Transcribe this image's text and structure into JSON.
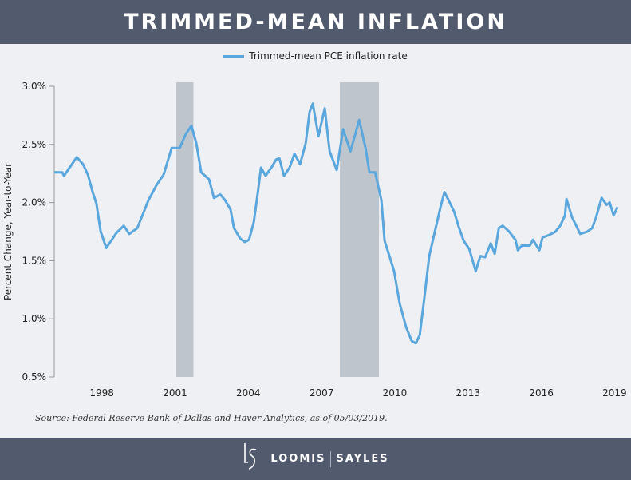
{
  "header": {
    "title": "TRIMMED-MEAN INFLATION"
  },
  "footer": {
    "logo_mark": "LS",
    "brand_left": "LOOMIS",
    "brand_right": "SAYLES"
  },
  "source_note": "Source: Federal Reserve Bank of Dallas and Haver Analytics, as of 05/03/2019.",
  "colors": {
    "line": "#5aa7dd",
    "recession": "#bfc5cc",
    "header": "#525a6e",
    "background": "#eef0f4"
  },
  "chart_data": {
    "type": "line",
    "title": "TRIMMED-MEAN INFLATION",
    "xlabel": "",
    "ylabel": "Percent Change, Year-to-Year",
    "xlim": [
      1996.2,
      2019.3
    ],
    "ylim": [
      0.5,
      3.0
    ],
    "yticks": [
      "3.0%",
      "2.5%",
      "2.0%",
      "1.5%",
      "1.0%",
      "0.5%"
    ],
    "ytick_values": [
      3.0,
      2.5,
      2.0,
      1.5,
      1.0,
      0.5
    ],
    "xticks": [
      "1998",
      "2001",
      "2004",
      "2007",
      "2010",
      "2013",
      "2016",
      "2019"
    ],
    "grid": false,
    "legend": "top-center",
    "recessions": [
      [
        2001.2,
        2001.9
      ],
      [
        2007.9,
        2009.5
      ]
    ],
    "series": [
      {
        "name": "Trimmed-mean PCE inflation rate",
        "x": [
          1996.2,
          1996.53,
          1996.6,
          1996.86,
          1997.12,
          1997.38,
          1997.58,
          1997.77,
          1997.93,
          1998.1,
          1998.33,
          1998.56,
          1998.75,
          1999.05,
          1999.27,
          1999.6,
          2000.06,
          2000.39,
          2000.68,
          2001.01,
          2001.34,
          2001.59,
          2001.82,
          2002.02,
          2002.22,
          2002.54,
          2002.74,
          2003.0,
          2003.2,
          2003.42,
          2003.56,
          2003.82,
          2004.01,
          2004.18,
          2004.37,
          2004.54,
          2004.67,
          2004.86,
          2005.12,
          2005.29,
          2005.42,
          2005.61,
          2005.84,
          2006.04,
          2006.27,
          2006.5,
          2006.66,
          2006.79,
          2007.02,
          2007.28,
          2007.48,
          2007.77,
          2008.03,
          2008.33,
          2008.69,
          2008.95,
          2009.11,
          2009.34,
          2009.6,
          2009.73,
          2009.93,
          2010.12,
          2010.35,
          2010.61,
          2010.84,
          2011.01,
          2011.17,
          2011.37,
          2011.56,
          2011.79,
          2012.02,
          2012.18,
          2012.35,
          2012.58,
          2012.77,
          2012.97,
          2013.2,
          2013.46,
          2013.65,
          2013.85,
          2014.08,
          2014.24,
          2014.41,
          2014.57,
          2014.83,
          2015.09,
          2015.19,
          2015.35,
          2015.68,
          2015.81,
          2016.07,
          2016.2,
          2016.46,
          2016.73,
          2016.92,
          2017.12,
          2017.18,
          2017.41,
          2017.58,
          2017.74,
          2018.03,
          2018.23,
          2018.39,
          2018.62,
          2018.82,
          2018.95,
          2019.11,
          2019.27
        ],
        "values": [
          2.26,
          2.26,
          2.23,
          2.31,
          2.39,
          2.33,
          2.24,
          2.09,
          1.99,
          1.75,
          1.61,
          1.68,
          1.74,
          1.8,
          1.73,
          1.78,
          2.02,
          2.15,
          2.24,
          2.47,
          2.47,
          2.59,
          2.66,
          2.51,
          2.26,
          2.2,
          2.04,
          2.07,
          2.02,
          1.94,
          1.78,
          1.69,
          1.66,
          1.68,
          1.83,
          2.09,
          2.3,
          2.23,
          2.31,
          2.37,
          2.38,
          2.23,
          2.3,
          2.42,
          2.33,
          2.51,
          2.78,
          2.85,
          2.57,
          2.81,
          2.44,
          2.28,
          2.63,
          2.44,
          2.71,
          2.47,
          2.26,
          2.26,
          2.02,
          1.67,
          1.54,
          1.41,
          1.13,
          0.93,
          0.81,
          0.79,
          0.86,
          1.2,
          1.54,
          1.75,
          1.96,
          2.09,
          2.02,
          1.92,
          1.79,
          1.67,
          1.6,
          1.41,
          1.54,
          1.53,
          1.65,
          1.56,
          1.78,
          1.8,
          1.75,
          1.68,
          1.59,
          1.63,
          1.63,
          1.68,
          1.59,
          1.7,
          1.72,
          1.75,
          1.8,
          1.89,
          2.03,
          1.87,
          1.8,
          1.73,
          1.75,
          1.78,
          1.87,
          2.04,
          1.98,
          2.0,
          1.89,
          1.96
        ]
      }
    ]
  }
}
